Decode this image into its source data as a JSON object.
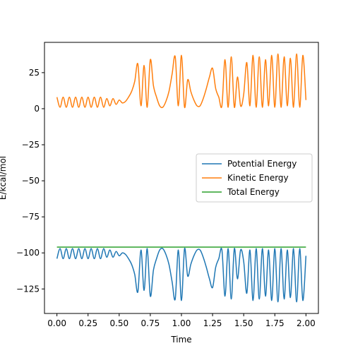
{
  "chart_data": {
    "type": "line",
    "title": "",
    "xlabel": "Time",
    "ylabel": "E/kcal/mol",
    "xlim": [
      -0.1,
      2.1
    ],
    "ylim": [
      -142,
      46
    ],
    "x_ticks": [
      0.0,
      0.25,
      0.5,
      0.75,
      1.0,
      1.25,
      1.5,
      1.75,
      2.0
    ],
    "x_tick_labels": [
      "0.00",
      "0.25",
      "0.50",
      "0.75",
      "1.00",
      "1.25",
      "1.50",
      "1.75",
      "2.00"
    ],
    "y_ticks": [
      25,
      0,
      -25,
      -50,
      -75,
      -100,
      -125
    ],
    "y_tick_labels": [
      "25",
      "0",
      "−25",
      "−50",
      "−75",
      "−100",
      "−125"
    ],
    "legend_position": "center-right",
    "grid": false,
    "series": [
      {
        "name": "Potential Energy",
        "color": "#1f77b4",
        "x": [
          0.0,
          0.025,
          0.05,
          0.075,
          0.1,
          0.125,
          0.15,
          0.175,
          0.2,
          0.225,
          0.25,
          0.275,
          0.3,
          0.325,
          0.35,
          0.375,
          0.4,
          0.425,
          0.45,
          0.475,
          0.5,
          0.525,
          0.55,
          0.575,
          0.6,
          0.625,
          0.65,
          0.675,
          0.7,
          0.725,
          0.75,
          0.775,
          0.8,
          0.825,
          0.85,
          0.875,
          0.9,
          0.925,
          0.95,
          0.975,
          1.0,
          1.025,
          1.05,
          1.075,
          1.1,
          1.125,
          1.15,
          1.175,
          1.2,
          1.225,
          1.25,
          1.275,
          1.3,
          1.325,
          1.35,
          1.375,
          1.4,
          1.425,
          1.45,
          1.475,
          1.5,
          1.525,
          1.55,
          1.575,
          1.6,
          1.625,
          1.65,
          1.675,
          1.7,
          1.725,
          1.75,
          1.775,
          1.8,
          1.825,
          1.85,
          1.875,
          1.9,
          1.925,
          1.95,
          1.975,
          2.0
        ],
        "values": [
          -104,
          -97,
          -104,
          -97,
          -104,
          -97,
          -104,
          -97,
          -104,
          -97,
          -104,
          -97,
          -104,
          -97,
          -104,
          -97,
          -103,
          -98,
          -103,
          -99,
          -102,
          -100,
          -101,
          -104,
          -108,
          -115,
          -127,
          -98,
          -126,
          -97,
          -130,
          -112,
          -104,
          -98,
          -97,
          -101,
          -108,
          -120,
          -132,
          -98,
          -133,
          -97,
          -116,
          -108,
          -102,
          -98,
          -98,
          -103,
          -110,
          -118,
          -124,
          -110,
          -104,
          -98,
          -130,
          -97,
          -132,
          -97,
          -118,
          -98,
          -106,
          -128,
          -98,
          -133,
          -97,
          -132,
          -97,
          -130,
          -98,
          -133,
          -97,
          -134,
          -97,
          -132,
          -98,
          -131,
          -97,
          -134,
          -97,
          -133,
          -102
        ]
      },
      {
        "name": "Kinetic Energy",
        "color": "#ff7f0e",
        "x": [
          0.0,
          0.025,
          0.05,
          0.075,
          0.1,
          0.125,
          0.15,
          0.175,
          0.2,
          0.225,
          0.25,
          0.275,
          0.3,
          0.325,
          0.35,
          0.375,
          0.4,
          0.425,
          0.45,
          0.475,
          0.5,
          0.525,
          0.55,
          0.575,
          0.6,
          0.625,
          0.65,
          0.675,
          0.7,
          0.725,
          0.75,
          0.775,
          0.8,
          0.825,
          0.85,
          0.875,
          0.9,
          0.925,
          0.95,
          0.975,
          1.0,
          1.025,
          1.05,
          1.075,
          1.1,
          1.125,
          1.15,
          1.175,
          1.2,
          1.225,
          1.25,
          1.275,
          1.3,
          1.325,
          1.35,
          1.375,
          1.4,
          1.425,
          1.45,
          1.475,
          1.5,
          1.525,
          1.55,
          1.575,
          1.6,
          1.625,
          1.65,
          1.675,
          1.7,
          1.725,
          1.75,
          1.775,
          1.8,
          1.825,
          1.85,
          1.875,
          1.9,
          1.925,
          1.95,
          1.975,
          2.0
        ],
        "values": [
          8,
          1,
          8,
          1,
          8,
          1,
          8,
          1,
          8,
          1,
          8,
          1,
          8,
          1,
          8,
          1,
          7,
          2,
          7,
          3,
          6,
          4,
          5,
          8,
          12,
          19,
          31,
          2,
          30,
          1,
          34,
          16,
          8,
          2,
          1,
          5,
          12,
          24,
          36,
          2,
          37,
          1,
          20,
          12,
          6,
          2,
          2,
          7,
          14,
          22,
          28,
          14,
          8,
          2,
          34,
          1,
          36,
          1,
          22,
          2,
          10,
          32,
          2,
          37,
          1,
          36,
          1,
          34,
          2,
          37,
          1,
          38,
          1,
          36,
          2,
          35,
          1,
          38,
          1,
          37,
          6
        ]
      },
      {
        "name": "Total Energy",
        "color": "#2ca02c",
        "x": [
          0.0,
          0.25,
          0.5,
          0.75,
          1.0,
          1.25,
          1.5,
          1.75,
          2.0
        ],
        "values": [
          -96,
          -96,
          -96,
          -96,
          -96,
          -96,
          -96,
          -96,
          -96
        ]
      }
    ]
  }
}
